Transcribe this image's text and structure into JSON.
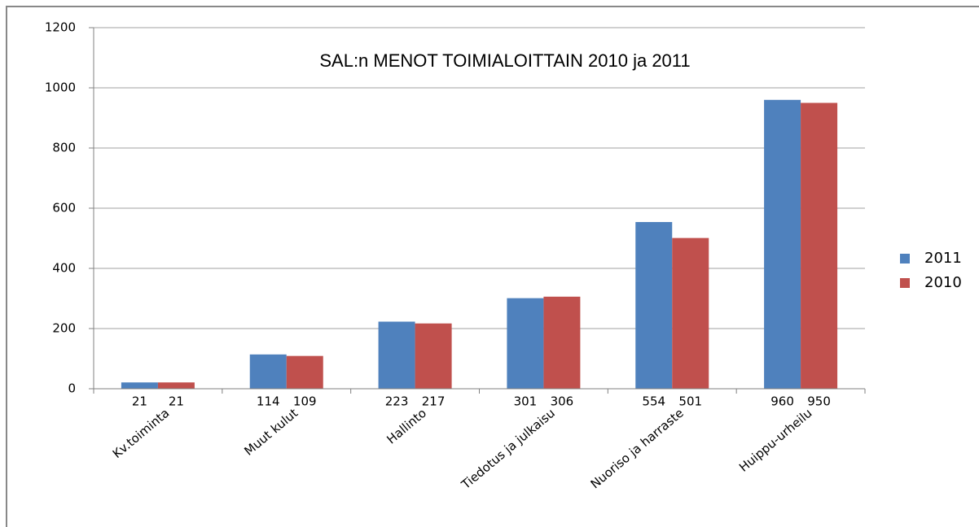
{
  "chart_data": {
    "type": "bar",
    "title": "SAL:n MENOT TOIMIALOITTAIN 2010 ja  2011",
    "categories": [
      "Kv.toiminta",
      "Muut kulut",
      "Hallinto",
      "Tiedotus ja julkaisu",
      "Nuoriso ja harraste",
      "Huippu-urheilu"
    ],
    "series": [
      {
        "name": "2011",
        "color": "#4f81bd",
        "values": [
          21,
          114,
          223,
          301,
          554,
          960
        ]
      },
      {
        "name": "2010",
        "color": "#c0504d",
        "values": [
          21,
          109,
          217,
          306,
          501,
          950
        ]
      }
    ],
    "ylim": [
      0,
      1200
    ],
    "yticks": [
      0,
      200,
      400,
      600,
      800,
      1000,
      1200
    ],
    "grid": true,
    "legend": "right"
  }
}
